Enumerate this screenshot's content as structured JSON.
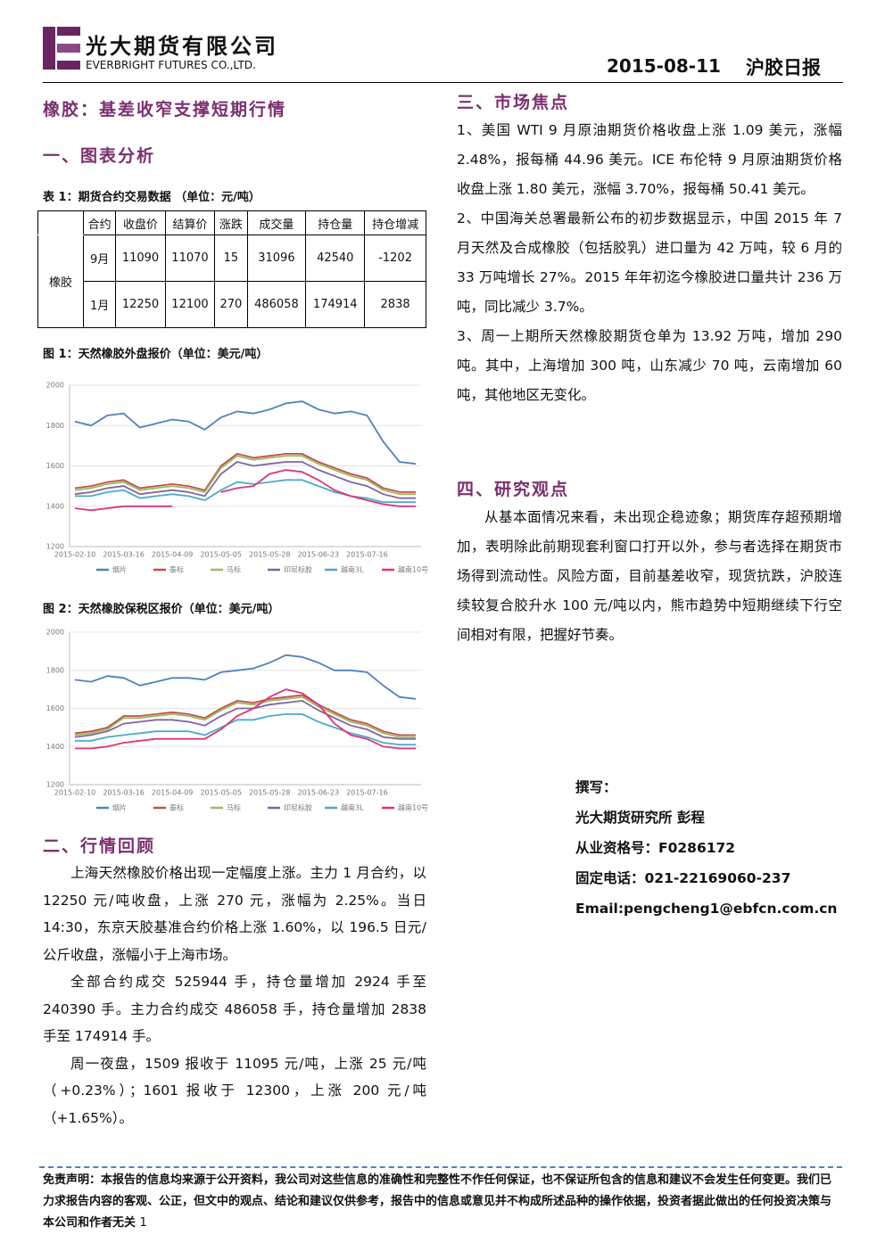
{
  "header": {
    "company_cn": "光大期货有限公司",
    "company_en": "EVERBRIGHT FUTURES CO.,LTD.",
    "date": "2015-08-11",
    "report": "沪胶日报"
  },
  "title": "橡胶：基差收窄支撑短期行情",
  "section1": "一、图表分析",
  "table": {
    "caption": "表 1：期货合约交易数据 （单位：元/吨）",
    "header": [
      "合约",
      "收盘价",
      "结算价",
      "涨跌",
      "成交量",
      "持仓量",
      "持仓增减"
    ],
    "group": "橡胶",
    "rows": [
      [
        "9月",
        11090,
        11070,
        15,
        31096,
        42540,
        -1202
      ],
      [
        "1月",
        12250,
        12100,
        270,
        486058,
        174914,
        2838
      ]
    ]
  },
  "figure_captions": [
    "图 1：天然橡胶外盘报价（单位：美元/吨）",
    "图 2：天然橡胶保税区报价（单位：美元/吨）"
  ],
  "chart_data": [
    {
      "type": "line",
      "categories": [
        "2015-02-10",
        null,
        null,
        "2015-03-16",
        null,
        null,
        "2015-04-09",
        null,
        null,
        "2015-05-05",
        null,
        null,
        "2015-05-28",
        null,
        null,
        "2015-06-23",
        null,
        null,
        "2015-07-16",
        null,
        null,
        null
      ],
      "ylim": [
        1200,
        2000
      ],
      "yticks": [
        1200,
        1400,
        1600,
        1800,
        2000
      ],
      "series": [
        {
          "name": "烟片",
          "color": "#4f81bd",
          "values": [
            1820,
            1800,
            1850,
            1860,
            1790,
            1810,
            1830,
            1820,
            1780,
            1840,
            1870,
            1860,
            1880,
            1910,
            1920,
            1880,
            1860,
            1870,
            1850,
            1720,
            1620,
            1610
          ]
        },
        {
          "name": "泰标",
          "color": "#c0504d",
          "values": [
            1490,
            1500,
            1520,
            1530,
            1490,
            1500,
            1510,
            1500,
            1480,
            1600,
            1660,
            1640,
            1650,
            1660,
            1660,
            1620,
            1590,
            1560,
            1540,
            1490,
            1470,
            1470
          ]
        },
        {
          "name": "马标",
          "color": "#9bbb59",
          "values": [
            1480,
            1490,
            1510,
            1520,
            1480,
            1490,
            1500,
            1490,
            1470,
            1590,
            1650,
            1630,
            1640,
            1650,
            1650,
            1610,
            1580,
            1550,
            1530,
            1480,
            1460,
            1460
          ]
        },
        {
          "name": "印尼标胶",
          "color": "#8064a2",
          "values": [
            1460,
            1470,
            1490,
            1500,
            1460,
            1470,
            1480,
            1470,
            1450,
            1560,
            1620,
            1600,
            1610,
            1620,
            1620,
            1580,
            1550,
            1520,
            1500,
            1460,
            1440,
            1440
          ]
        },
        {
          "name": "越南3L",
          "color": "#4bacc6",
          "values": [
            1450,
            1450,
            1470,
            1480,
            1440,
            1450,
            1460,
            1450,
            1430,
            1480,
            1520,
            1510,
            1520,
            1530,
            1530,
            1500,
            1470,
            1450,
            1440,
            1420,
            1420,
            1420
          ]
        },
        {
          "name": "越南10号",
          "color": "#e0337a",
          "values": [
            1390,
            1380,
            1390,
            1400,
            1400,
            1400,
            1400,
            null,
            null,
            1470,
            1490,
            1500,
            1560,
            1580,
            1570,
            1530,
            1480,
            1450,
            1430,
            1410,
            1400,
            1400
          ]
        }
      ]
    },
    {
      "type": "line",
      "categories": [
        "2015-02-10",
        null,
        null,
        "2015-03-16",
        null,
        null,
        "2015-04-09",
        null,
        null,
        "2015-05-05",
        null,
        null,
        "2015-05-28",
        null,
        null,
        "2015-06-23",
        null,
        null,
        "2015-07-16",
        null,
        null,
        null
      ],
      "ylim": [
        1200,
        2000
      ],
      "yticks": [
        1200,
        1400,
        1600,
        1800,
        2000
      ],
      "series": [
        {
          "name": "烟片",
          "color": "#4f81bd",
          "values": [
            1750,
            1740,
            1770,
            1760,
            1720,
            1740,
            1760,
            1760,
            1750,
            1790,
            1800,
            1810,
            1840,
            1880,
            1870,
            1840,
            1800,
            1800,
            1790,
            1720,
            1660,
            1650
          ]
        },
        {
          "name": "泰标",
          "color": "#c0504d",
          "values": [
            1470,
            1480,
            1500,
            1560,
            1560,
            1570,
            1580,
            1570,
            1550,
            1600,
            1640,
            1630,
            1650,
            1660,
            1670,
            1620,
            1580,
            1540,
            1520,
            1480,
            1460,
            1460
          ]
        },
        {
          "name": "马标",
          "color": "#9bbb59",
          "values": [
            1460,
            1470,
            1490,
            1550,
            1550,
            1560,
            1570,
            1560,
            1540,
            1590,
            1630,
            1620,
            1640,
            1650,
            1660,
            1610,
            1570,
            1530,
            1510,
            1470,
            1450,
            1450
          ]
        },
        {
          "name": "印尼标胶",
          "color": "#8064a2",
          "values": [
            1450,
            1460,
            1480,
            1520,
            1530,
            1540,
            1540,
            1530,
            1510,
            1560,
            1600,
            1600,
            1620,
            1630,
            1640,
            1590,
            1550,
            1510,
            1490,
            1450,
            1440,
            1440
          ]
        },
        {
          "name": "越南3L",
          "color": "#4bacc6",
          "values": [
            1430,
            1430,
            1450,
            1460,
            1470,
            1480,
            1480,
            1480,
            1460,
            1500,
            1540,
            1540,
            1560,
            1570,
            1570,
            1530,
            1500,
            1470,
            1450,
            1420,
            1410,
            1410
          ]
        },
        {
          "name": "越南10号",
          "color": "#e0337a",
          "values": [
            1390,
            1390,
            1400,
            1420,
            1430,
            1440,
            1440,
            1440,
            1440,
            1490,
            1560,
            1600,
            1660,
            1700,
            1680,
            1620,
            1520,
            1460,
            1440,
            1400,
            1390,
            1390
          ]
        }
      ]
    }
  ],
  "section2": "二、行情回顾",
  "review": [
    "上海天然橡胶价格出现一定幅度上涨。主力 1 月合约，以 12250 元/吨收盘，上涨 270 元，涨幅为 2.25%。当日 14:30，东京天胶基准合约价格上涨 1.60%，以 196.5 日元/公斤收盘，涨幅小于上海市场。",
    "全部合约成交 525944 手，持仓量增加 2924 手至 240390 手。主力合约成交 486058 手，持仓量增加 2838 手至 174914 手。",
    "周一夜盘，1509 报收于 11095 元/吨，上涨 25 元/吨（+0.23%）；1601 报收于 12300，上涨 200 元/吨（+1.65%）。"
  ],
  "section3": "三、市场焦点",
  "focus": [
    "1、美国 WTI 9 月原油期货价格收盘上涨 1.09 美元，涨幅 2.48%，报每桶 44.96 美元。ICE 布伦特 9 月原油期货价格收盘上涨 1.80 美元，涨幅 3.70%，报每桶 50.41 美元。",
    "2、中国海关总署最新公布的初步数据显示，中国 2015 年 7 月天然及合成橡胶（包括胶乳）进口量为 42 万吨，较 6 月的 33 万吨增长 27%。2015 年年初迄今橡胶进口量共计 236 万吨，同比减少 3.7%。",
    "3、周一上期所天然橡胶期货仓单为 13.92 万吨，增加 290 吨。其中，上海增加 300 吨，山东减少 70 吨，云南增加 60 吨，其他地区无变化。"
  ],
  "section4": "四、研究观点",
  "view": "从基本面情况来看，未出现企稳迹象；期货库存超预期增加，表明除此前期现套利窗口打开以外，参与者选择在期货市场得到流动性。风险方面，目前基差收窄，现货抗跌，沪胶连续较复合胶升水 100 元/吨以内，熊市趋势中短期继续下行空间相对有限，把握好节奏。",
  "author": [
    "撰写：",
    "光大期货研究所 彭程",
    "从业资格号：F0286172",
    "固定电话：021-22169060-237",
    "Email:pengcheng1@ebfcn.com.cn"
  ],
  "disclaimer": "免责声明：本报告的信息均来源于公开资料，我公司对这些信息的准确性和完整性不作任何保证，也不保证所包含的信息和建议不会发生任何变更。我们已力求报告内容的客观、公正，但文中的观点、结论和建议仅供参考，报告中的信息或意见并不构成所述品种的操作依据，投资者据此做出的任何投资决策与本公司和作者无关",
  "page": 1
}
